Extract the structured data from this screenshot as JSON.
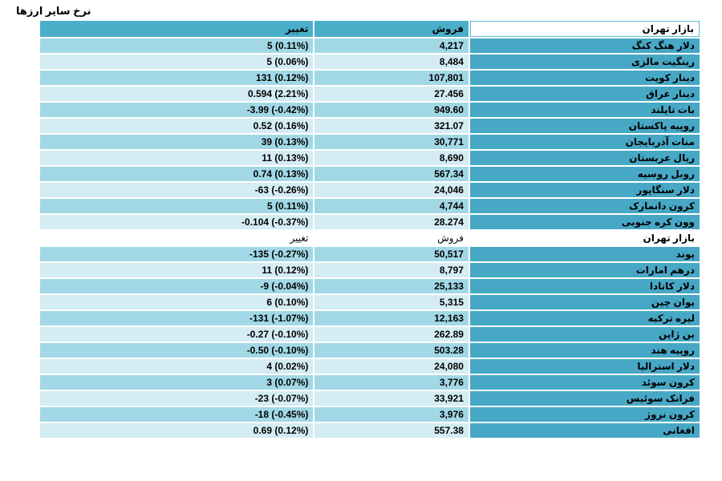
{
  "title": "نرخ سایر ارزها",
  "header": {
    "market": "بازار تهران",
    "sell": "فروش",
    "change": "تغییر"
  },
  "group1": [
    {
      "name": "دلار هنگ کنگ",
      "sell": "4,217",
      "change": "5 (0.11%)"
    },
    {
      "name": "رینگیت مالزی",
      "sell": "8,484",
      "change": "5 (0.06%)"
    },
    {
      "name": "دینار کویت",
      "sell": "107,801",
      "change": "131 (0.12%)"
    },
    {
      "name": "دینار عراق",
      "sell": "27.456",
      "change": "0.594 (2.21%)"
    },
    {
      "name": "بات تایلند",
      "sell": "949.60",
      "change": "-3.99 (-0.42%)"
    },
    {
      "name": "روپیه پاکستان",
      "sell": "321.07",
      "change": "0.52 (0.16%)"
    },
    {
      "name": "منات آذربایجان",
      "sell": "30,771",
      "change": "39 (0.13%)"
    },
    {
      "name": "ریال عربستان",
      "sell": "8,690",
      "change": "11 (0.13%)"
    },
    {
      "name": "روبل روسیه",
      "sell": "567.34",
      "change": "0.74 (0.13%)"
    },
    {
      "name": "دلار سنگاپور",
      "sell": "24,046",
      "change": "-63 (-0.26%)"
    },
    {
      "name": "کرون دانمارک",
      "sell": "4,744",
      "change": "5 (0.11%)"
    },
    {
      "name": "وون کره جنوبی",
      "sell": "28.274",
      "change": "-0.104 (-0.37%)"
    }
  ],
  "subheader": {
    "market": "بازار تهران",
    "sell": "فروش",
    "change": "تغییر"
  },
  "group2": [
    {
      "name": "پوند",
      "sell": "50,517",
      "change": "-135 (-0.27%)"
    },
    {
      "name": "درهم امارات",
      "sell": "8,797",
      "change": "11 (0.12%)"
    },
    {
      "name": "دلار کانادا",
      "sell": "25,133",
      "change": "-9 (-0.04%)"
    },
    {
      "name": "یوان چین",
      "sell": "5,315",
      "change": "6 (0.10%)"
    },
    {
      "name": "لیره ترکیه",
      "sell": "12,163",
      "change": "-131 (-1.07%)"
    },
    {
      "name": "ین ژاپن",
      "sell": "262.89",
      "change": "-0.27 (-0.10%)"
    },
    {
      "name": "روپیه هند",
      "sell": "503.28",
      "change": "-0.50 (-0.10%)"
    },
    {
      "name": "دلار استرالیا",
      "sell": "24,080",
      "change": "4 (0.02%)"
    },
    {
      "name": "کرون سوئد",
      "sell": "3,776",
      "change": "3 (0.07%)"
    },
    {
      "name": "فرانک سوئیس",
      "sell": "33,921",
      "change": "-23 (-0.07%)"
    },
    {
      "name": "کرون نروژ",
      "sell": "3,976",
      "change": "-18 (-0.45%)"
    },
    {
      "name": "افغانی",
      "sell": "557.38",
      "change": "0.69 (0.12%)"
    }
  ]
}
